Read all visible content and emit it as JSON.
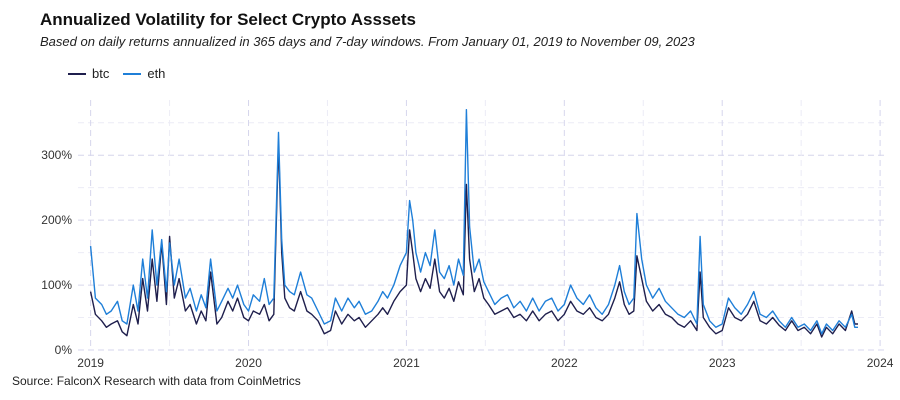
{
  "header": {
    "title": "Annualized Volatility for Select Crypto Asssets",
    "subtitle": "Based on daily returns annualized in 365 days and 7-day windows. From January 01, 2019 to November 09, 2023"
  },
  "source": "Source: FalconX Research with data from CoinMetrics",
  "chart_data": {
    "type": "line",
    "title": "Annualized Volatility for Select Crypto Asssets",
    "xlabel": "",
    "ylabel": "",
    "xlim": [
      2018.92,
      2024.05
    ],
    "ylim": [
      0,
      385
    ],
    "grid": true,
    "legend": "top-left",
    "x_ticks": [
      2019,
      2020,
      2021,
      2022,
      2023,
      2024
    ],
    "y_ticks": [
      0,
      100,
      200,
      300
    ],
    "y_tick_labels": [
      "0%",
      "100%",
      "200%",
      "300%"
    ],
    "series": [
      {
        "name": "btc",
        "color": "#1f1f4d",
        "points": [
          [
            2019.0,
            90
          ],
          [
            2019.03,
            55
          ],
          [
            2019.07,
            45
          ],
          [
            2019.1,
            35
          ],
          [
            2019.13,
            40
          ],
          [
            2019.17,
            45
          ],
          [
            2019.2,
            28
          ],
          [
            2019.23,
            22
          ],
          [
            2019.27,
            70
          ],
          [
            2019.3,
            40
          ],
          [
            2019.33,
            110
          ],
          [
            2019.36,
            60
          ],
          [
            2019.39,
            140
          ],
          [
            2019.42,
            75
          ],
          [
            2019.45,
            165
          ],
          [
            2019.48,
            70
          ],
          [
            2019.5,
            175
          ],
          [
            2019.53,
            80
          ],
          [
            2019.56,
            110
          ],
          [
            2019.6,
            60
          ],
          [
            2019.63,
            70
          ],
          [
            2019.67,
            40
          ],
          [
            2019.7,
            60
          ],
          [
            2019.73,
            45
          ],
          [
            2019.76,
            120
          ],
          [
            2019.8,
            40
          ],
          [
            2019.83,
            50
          ],
          [
            2019.87,
            75
          ],
          [
            2019.9,
            60
          ],
          [
            2019.93,
            80
          ],
          [
            2019.97,
            50
          ],
          [
            2020.0,
            45
          ],
          [
            2020.03,
            60
          ],
          [
            2020.07,
            55
          ],
          [
            2020.1,
            70
          ],
          [
            2020.13,
            45
          ],
          [
            2020.16,
            55
          ],
          [
            2020.19,
            320
          ],
          [
            2020.21,
            150
          ],
          [
            2020.23,
            80
          ],
          [
            2020.26,
            65
          ],
          [
            2020.29,
            60
          ],
          [
            2020.33,
            90
          ],
          [
            2020.37,
            60
          ],
          [
            2020.4,
            55
          ],
          [
            2020.44,
            45
          ],
          [
            2020.48,
            25
          ],
          [
            2020.52,
            30
          ],
          [
            2020.55,
            60
          ],
          [
            2020.59,
            40
          ],
          [
            2020.63,
            55
          ],
          [
            2020.67,
            45
          ],
          [
            2020.7,
            50
          ],
          [
            2020.74,
            35
          ],
          [
            2020.78,
            45
          ],
          [
            2020.82,
            55
          ],
          [
            2020.85,
            65
          ],
          [
            2020.88,
            55
          ],
          [
            2020.92,
            75
          ],
          [
            2020.96,
            90
          ],
          [
            2021.0,
            100
          ],
          [
            2021.02,
            185
          ],
          [
            2021.04,
            150
          ],
          [
            2021.06,
            110
          ],
          [
            2021.09,
            90
          ],
          [
            2021.12,
            110
          ],
          [
            2021.15,
            95
          ],
          [
            2021.18,
            140
          ],
          [
            2021.21,
            90
          ],
          [
            2021.24,
            80
          ],
          [
            2021.27,
            95
          ],
          [
            2021.3,
            75
          ],
          [
            2021.33,
            105
          ],
          [
            2021.36,
            85
          ],
          [
            2021.38,
            255
          ],
          [
            2021.4,
            140
          ],
          [
            2021.43,
            90
          ],
          [
            2021.46,
            110
          ],
          [
            2021.49,
            80
          ],
          [
            2021.52,
            70
          ],
          [
            2021.56,
            55
          ],
          [
            2021.6,
            60
          ],
          [
            2021.64,
            65
          ],
          [
            2021.68,
            50
          ],
          [
            2021.72,
            55
          ],
          [
            2021.76,
            45
          ],
          [
            2021.8,
            60
          ],
          [
            2021.84,
            45
          ],
          [
            2021.88,
            55
          ],
          [
            2021.92,
            60
          ],
          [
            2021.96,
            45
          ],
          [
            2022.0,
            55
          ],
          [
            2022.04,
            75
          ],
          [
            2022.08,
            60
          ],
          [
            2022.12,
            55
          ],
          [
            2022.16,
            65
          ],
          [
            2022.2,
            50
          ],
          [
            2022.24,
            45
          ],
          [
            2022.28,
            55
          ],
          [
            2022.32,
            80
          ],
          [
            2022.35,
            105
          ],
          [
            2022.38,
            70
          ],
          [
            2022.41,
            55
          ],
          [
            2022.44,
            60
          ],
          [
            2022.46,
            145
          ],
          [
            2022.49,
            110
          ],
          [
            2022.52,
            75
          ],
          [
            2022.56,
            60
          ],
          [
            2022.6,
            70
          ],
          [
            2022.64,
            55
          ],
          [
            2022.68,
            50
          ],
          [
            2022.72,
            40
          ],
          [
            2022.76,
            35
          ],
          [
            2022.8,
            45
          ],
          [
            2022.84,
            30
          ],
          [
            2022.86,
            120
          ],
          [
            2022.88,
            50
          ],
          [
            2022.92,
            35
          ],
          [
            2022.96,
            25
          ],
          [
            2023.0,
            30
          ],
          [
            2023.04,
            65
          ],
          [
            2023.08,
            50
          ],
          [
            2023.12,
            45
          ],
          [
            2023.16,
            55
          ],
          [
            2023.2,
            75
          ],
          [
            2023.24,
            45
          ],
          [
            2023.28,
            40
          ],
          [
            2023.32,
            50
          ],
          [
            2023.36,
            38
          ],
          [
            2023.4,
            30
          ],
          [
            2023.44,
            45
          ],
          [
            2023.48,
            30
          ],
          [
            2023.52,
            35
          ],
          [
            2023.56,
            25
          ],
          [
            2023.6,
            40
          ],
          [
            2023.63,
            20
          ],
          [
            2023.66,
            35
          ],
          [
            2023.7,
            25
          ],
          [
            2023.74,
            40
          ],
          [
            2023.78,
            30
          ],
          [
            2023.82,
            60
          ],
          [
            2023.84,
            40
          ],
          [
            2023.86,
            40
          ]
        ]
      },
      {
        "name": "eth",
        "color": "#1f7fd8",
        "points": [
          [
            2019.0,
            160
          ],
          [
            2019.03,
            80
          ],
          [
            2019.07,
            70
          ],
          [
            2019.1,
            55
          ],
          [
            2019.13,
            60
          ],
          [
            2019.17,
            75
          ],
          [
            2019.2,
            45
          ],
          [
            2019.23,
            40
          ],
          [
            2019.27,
            100
          ],
          [
            2019.3,
            60
          ],
          [
            2019.33,
            140
          ],
          [
            2019.36,
            80
          ],
          [
            2019.39,
            185
          ],
          [
            2019.42,
            100
          ],
          [
            2019.45,
            170
          ],
          [
            2019.48,
            90
          ],
          [
            2019.5,
            165
          ],
          [
            2019.53,
            100
          ],
          [
            2019.56,
            140
          ],
          [
            2019.6,
            80
          ],
          [
            2019.63,
            95
          ],
          [
            2019.67,
            60
          ],
          [
            2019.7,
            85
          ],
          [
            2019.73,
            65
          ],
          [
            2019.76,
            140
          ],
          [
            2019.8,
            60
          ],
          [
            2019.83,
            75
          ],
          [
            2019.87,
            95
          ],
          [
            2019.9,
            80
          ],
          [
            2019.93,
            100
          ],
          [
            2019.97,
            70
          ],
          [
            2020.0,
            60
          ],
          [
            2020.03,
            85
          ],
          [
            2020.07,
            75
          ],
          [
            2020.1,
            110
          ],
          [
            2020.13,
            70
          ],
          [
            2020.16,
            80
          ],
          [
            2020.19,
            335
          ],
          [
            2020.21,
            170
          ],
          [
            2020.23,
            100
          ],
          [
            2020.26,
            90
          ],
          [
            2020.29,
            85
          ],
          [
            2020.33,
            120
          ],
          [
            2020.37,
            85
          ],
          [
            2020.4,
            80
          ],
          [
            2020.44,
            60
          ],
          [
            2020.48,
            40
          ],
          [
            2020.52,
            45
          ],
          [
            2020.55,
            80
          ],
          [
            2020.59,
            60
          ],
          [
            2020.63,
            80
          ],
          [
            2020.67,
            65
          ],
          [
            2020.7,
            75
          ],
          [
            2020.74,
            55
          ],
          [
            2020.78,
            60
          ],
          [
            2020.82,
            75
          ],
          [
            2020.85,
            90
          ],
          [
            2020.88,
            80
          ],
          [
            2020.92,
            100
          ],
          [
            2020.96,
            130
          ],
          [
            2021.0,
            150
          ],
          [
            2021.02,
            230
          ],
          [
            2021.04,
            200
          ],
          [
            2021.06,
            150
          ],
          [
            2021.09,
            120
          ],
          [
            2021.12,
            150
          ],
          [
            2021.15,
            130
          ],
          [
            2021.18,
            185
          ],
          [
            2021.21,
            120
          ],
          [
            2021.24,
            110
          ],
          [
            2021.27,
            130
          ],
          [
            2021.3,
            100
          ],
          [
            2021.33,
            140
          ],
          [
            2021.36,
            115
          ],
          [
            2021.38,
            370
          ],
          [
            2021.4,
            190
          ],
          [
            2021.43,
            120
          ],
          [
            2021.46,
            140
          ],
          [
            2021.49,
            105
          ],
          [
            2021.52,
            90
          ],
          [
            2021.56,
            70
          ],
          [
            2021.6,
            80
          ],
          [
            2021.64,
            85
          ],
          [
            2021.68,
            65
          ],
          [
            2021.72,
            75
          ],
          [
            2021.76,
            60
          ],
          [
            2021.8,
            80
          ],
          [
            2021.84,
            60
          ],
          [
            2021.88,
            75
          ],
          [
            2021.92,
            80
          ],
          [
            2021.96,
            60
          ],
          [
            2022.0,
            70
          ],
          [
            2022.04,
            100
          ],
          [
            2022.08,
            80
          ],
          [
            2022.12,
            70
          ],
          [
            2022.16,
            85
          ],
          [
            2022.2,
            65
          ],
          [
            2022.24,
            55
          ],
          [
            2022.28,
            70
          ],
          [
            2022.32,
            100
          ],
          [
            2022.35,
            130
          ],
          [
            2022.38,
            90
          ],
          [
            2022.41,
            70
          ],
          [
            2022.44,
            80
          ],
          [
            2022.46,
            210
          ],
          [
            2022.49,
            140
          ],
          [
            2022.52,
            100
          ],
          [
            2022.56,
            80
          ],
          [
            2022.6,
            95
          ],
          [
            2022.64,
            75
          ],
          [
            2022.68,
            65
          ],
          [
            2022.72,
            55
          ],
          [
            2022.76,
            50
          ],
          [
            2022.8,
            60
          ],
          [
            2022.84,
            40
          ],
          [
            2022.86,
            175
          ],
          [
            2022.88,
            70
          ],
          [
            2022.92,
            45
          ],
          [
            2022.96,
            35
          ],
          [
            2023.0,
            40
          ],
          [
            2023.04,
            80
          ],
          [
            2023.08,
            65
          ],
          [
            2023.12,
            55
          ],
          [
            2023.16,
            70
          ],
          [
            2023.2,
            90
          ],
          [
            2023.24,
            55
          ],
          [
            2023.28,
            50
          ],
          [
            2023.32,
            60
          ],
          [
            2023.36,
            45
          ],
          [
            2023.4,
            35
          ],
          [
            2023.44,
            50
          ],
          [
            2023.48,
            35
          ],
          [
            2023.52,
            40
          ],
          [
            2023.56,
            30
          ],
          [
            2023.6,
            45
          ],
          [
            2023.63,
            25
          ],
          [
            2023.66,
            40
          ],
          [
            2023.7,
            30
          ],
          [
            2023.74,
            45
          ],
          [
            2023.78,
            35
          ],
          [
            2023.82,
            55
          ],
          [
            2023.84,
            35
          ],
          [
            2023.86,
            35
          ]
        ]
      }
    ]
  }
}
